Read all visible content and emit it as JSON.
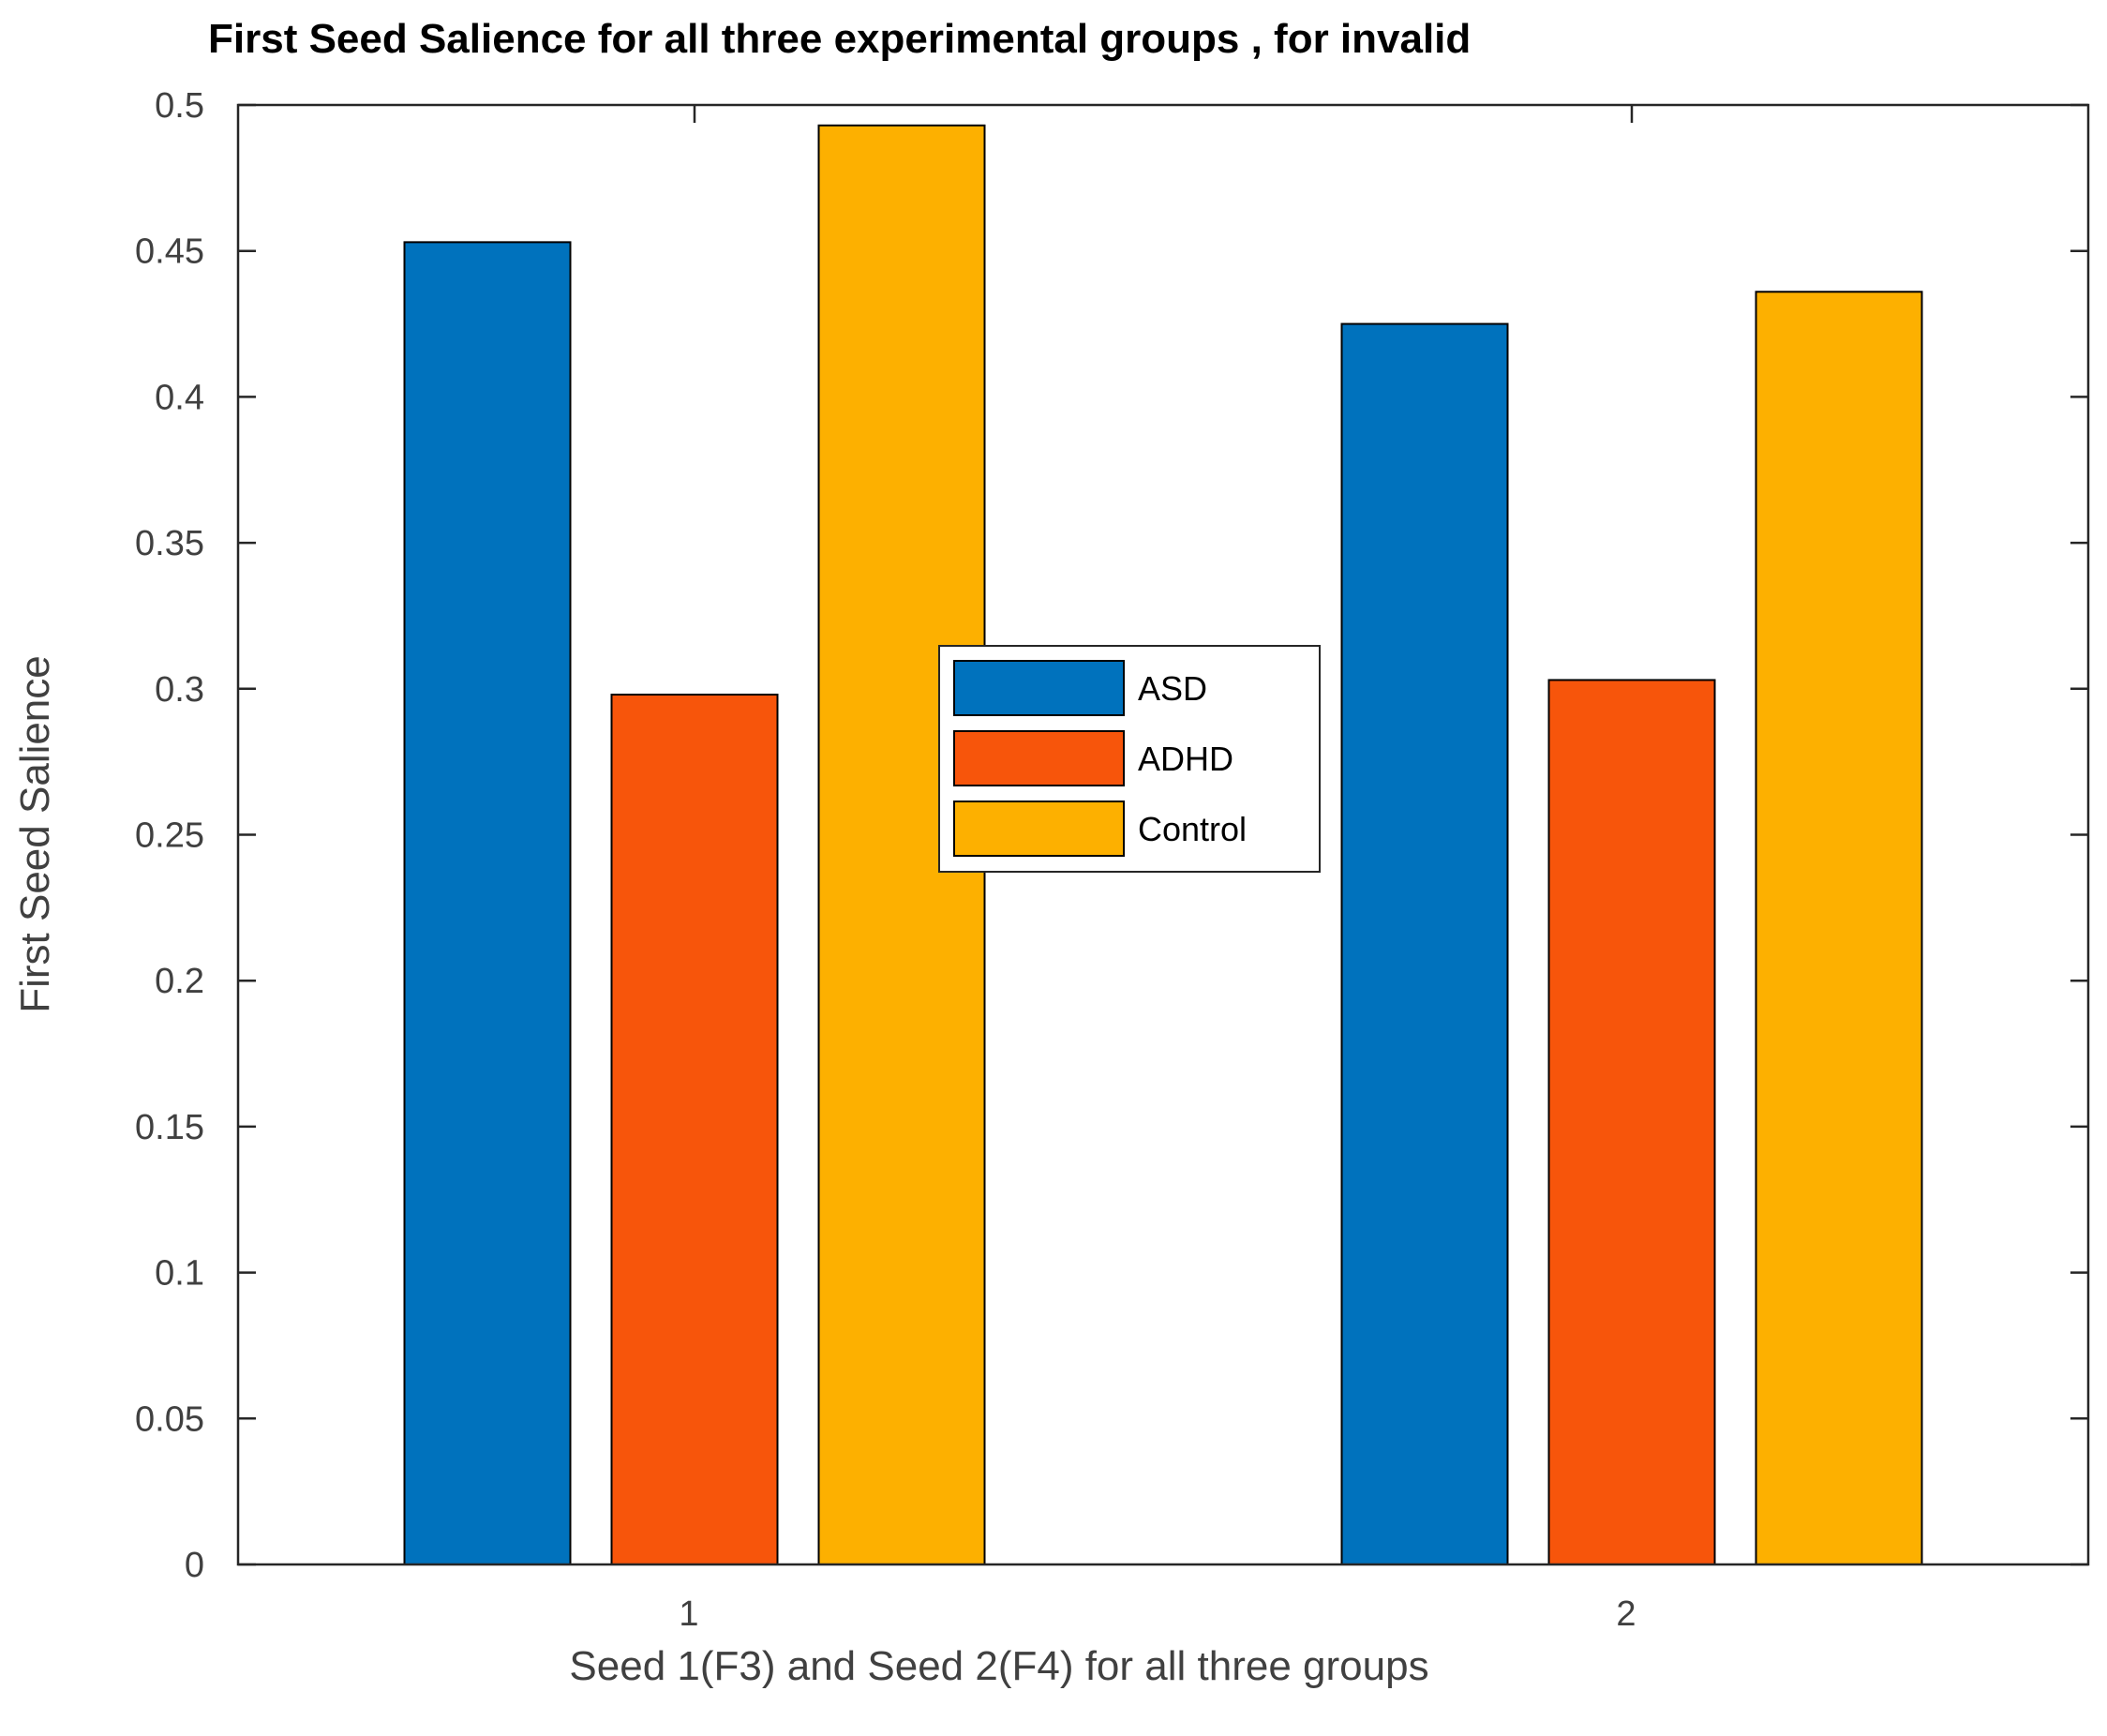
{
  "chart_data": {
    "type": "bar",
    "title": "First Seed Salience for all three experimental groups , for invalid",
    "xlabel": "Seed 1(F3) and Seed 2(F4) for all three groups",
    "ylabel": "First Seed Salience",
    "categories": [
      "1",
      "2"
    ],
    "ylim": [
      0,
      0.5
    ],
    "yticks": [
      "0",
      "0.05",
      "0.1",
      "0.15",
      "0.2",
      "0.25",
      "0.3",
      "0.35",
      "0.4",
      "0.45",
      "0.5"
    ],
    "grid": false,
    "legend_position": "center",
    "series": [
      {
        "name": "ASD",
        "color": "#0072BD",
        "values": [
          0.453,
          0.425
        ]
      },
      {
        "name": "ADHD",
        "color": "#F7550B",
        "values": [
          0.298,
          0.303
        ]
      },
      {
        "name": "Control",
        "color": "#FDB000",
        "values": [
          0.493,
          0.436
        ]
      }
    ]
  }
}
